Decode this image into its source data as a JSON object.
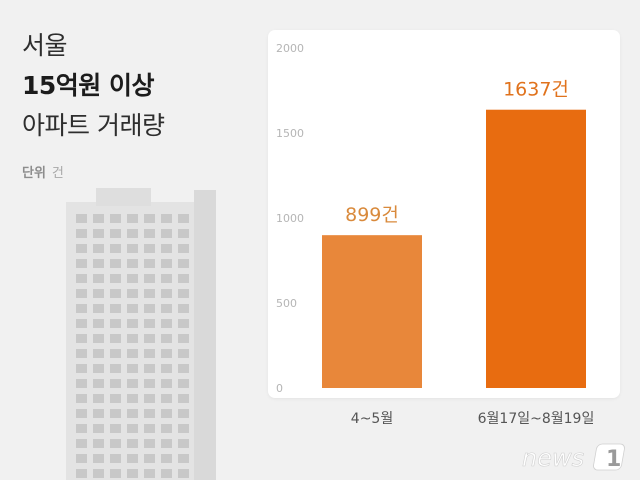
{
  "header": {
    "line1": "서울",
    "line2": "15억원 이상",
    "line3": "아파트 거래량",
    "unit_label": "단위",
    "unit_value": "건"
  },
  "logo": {
    "text": "news",
    "mark": "1"
  },
  "colors": {
    "bar1": "#e8873a",
    "bar2": "#e86c10",
    "label1": "#d98a3c",
    "label2": "#e0721c",
    "tick": "#b5b5b5",
    "category": "#555555"
  },
  "chart_data": {
    "type": "bar",
    "title": "",
    "xlabel": "",
    "ylabel": "",
    "categories": [
      "4~5월",
      "6월17일~8월19일"
    ],
    "values": [
      899,
      1637
    ],
    "data_labels": [
      "899건",
      "1637건"
    ],
    "ylim": [
      0,
      2000
    ],
    "yticks": [
      0,
      500,
      1000,
      1500,
      2000
    ],
    "grid": false,
    "legend": "none"
  }
}
